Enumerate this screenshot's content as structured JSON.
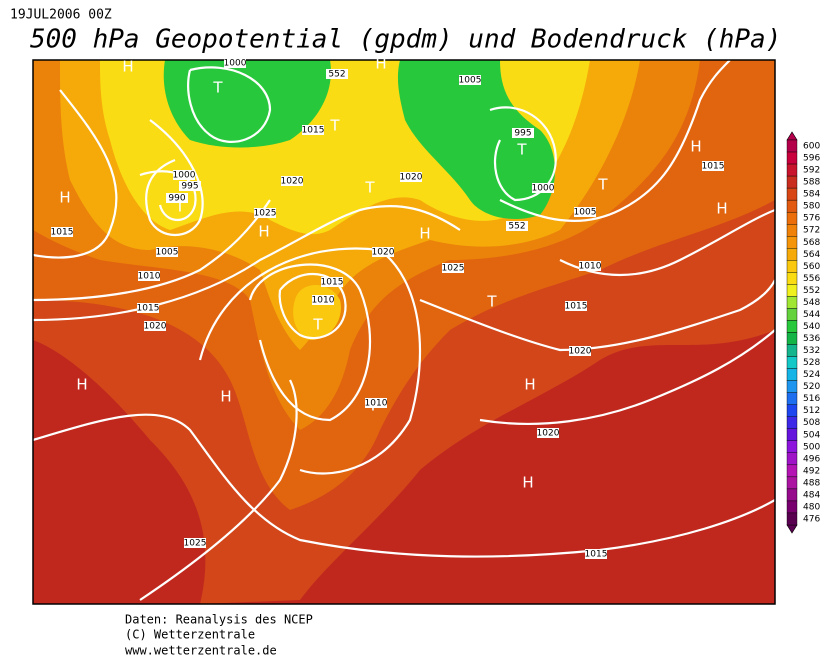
{
  "header": {
    "timestamp": "19JUL2006 00Z",
    "title": "500 hPa Geopotential (gpdm) und Bodendruck (hPa)"
  },
  "map": {
    "pressure_centers": [
      "T",
      "H",
      "H",
      "T",
      "T",
      "T",
      "T",
      "H",
      "H",
      "T",
      "H",
      "H",
      "H",
      "T",
      "T",
      "H",
      "H",
      "H",
      "T",
      "H"
    ],
    "isobar_labels": [
      1000,
      1005,
      552,
      1015,
      995,
      1000,
      995,
      990,
      1020,
      1020,
      1000,
      1015,
      1005,
      1025,
      1015,
      1005,
      1020,
      1025,
      1010,
      1010,
      1015,
      1015,
      1010,
      1015,
      1020,
      1020,
      1010,
      1020,
      1025,
      1015,
      552
    ]
  },
  "colorbar": {
    "labels": [
      600,
      596,
      592,
      588,
      584,
      580,
      576,
      572,
      568,
      564,
      560,
      556,
      552,
      548,
      544,
      540,
      536,
      532,
      528,
      524,
      520,
      516,
      512,
      508,
      504,
      500,
      496,
      492,
      488,
      484,
      480,
      476
    ],
    "colors": [
      "#b4004b",
      "#c8003c",
      "#c8142d",
      "#c82d1e",
      "#d74614",
      "#e15a0f",
      "#eb6e0a",
      "#f0820a",
      "#f5960a",
      "#f5aa0a",
      "#fac80f",
      "#fadc14",
      "#f0f01e",
      "#a0e632",
      "#64d23c",
      "#28c83c",
      "#14b446",
      "#14b48c",
      "#14c8c8",
      "#14b4e6",
      "#1e96f0",
      "#1e6ef0",
      "#1e46f0",
      "#3c28e6",
      "#6414dc",
      "#8c14dc",
      "#a014c8",
      "#b414b4",
      "#aa14a0",
      "#960a8c",
      "#78006e",
      "#5a0050"
    ]
  },
  "footer": [
    "Daten: Reanalysis des NCEP",
    "(C) Wetterzentrale",
    "www.wetterzentrale.de"
  ]
}
